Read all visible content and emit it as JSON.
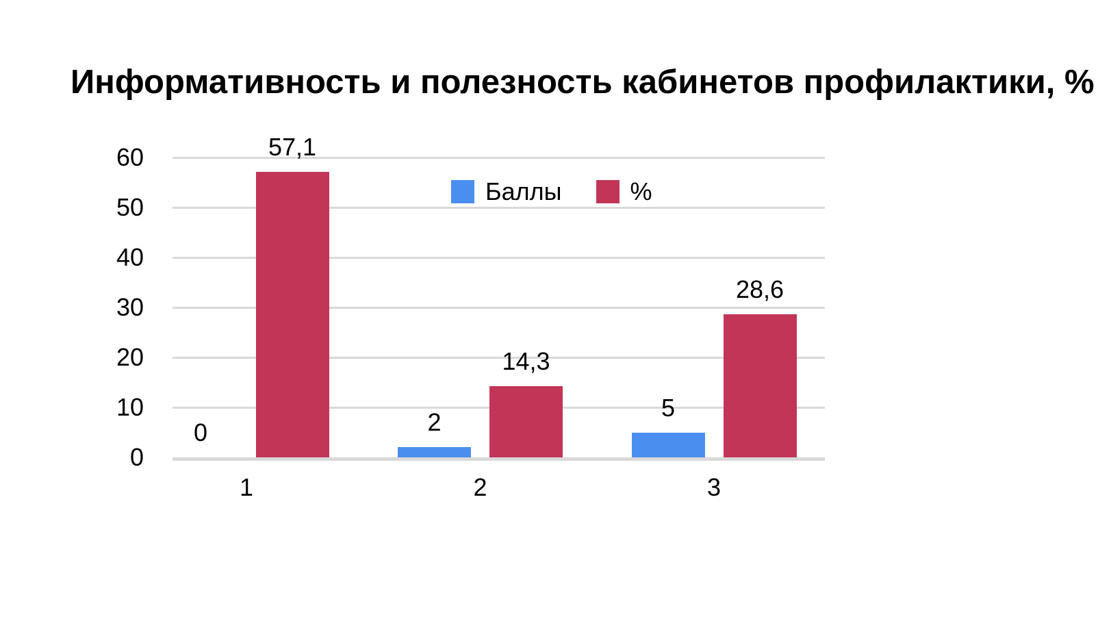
{
  "colors": {
    "background": "#ffffff",
    "text": "#000000",
    "grid": "#d9d9d9",
    "baseline": "#d9d9d9"
  },
  "chart_data": {
    "type": "bar",
    "title": "Информативность и полезность кабинетов профилактики, %",
    "categories": [
      "1",
      "2",
      "3"
    ],
    "series": [
      {
        "name": "Баллы",
        "color": "#4a8ff0",
        "values": [
          0,
          2,
          5
        ],
        "value_labels": [
          "0",
          "2",
          "5"
        ]
      },
      {
        "name": "%",
        "color": "#c23557",
        "values": [
          57.1,
          14.3,
          28.6
        ],
        "value_labels": [
          "57,1",
          "14,3",
          "28,6"
        ]
      }
    ],
    "xlabel": "",
    "ylabel": "",
    "ylim": [
      0,
      60
    ],
    "yticks": [
      "0",
      "10",
      "20",
      "30",
      "40",
      "50",
      "60"
    ],
    "grid": true,
    "legend_position": "top-center-inside",
    "decimal_separator": ","
  }
}
